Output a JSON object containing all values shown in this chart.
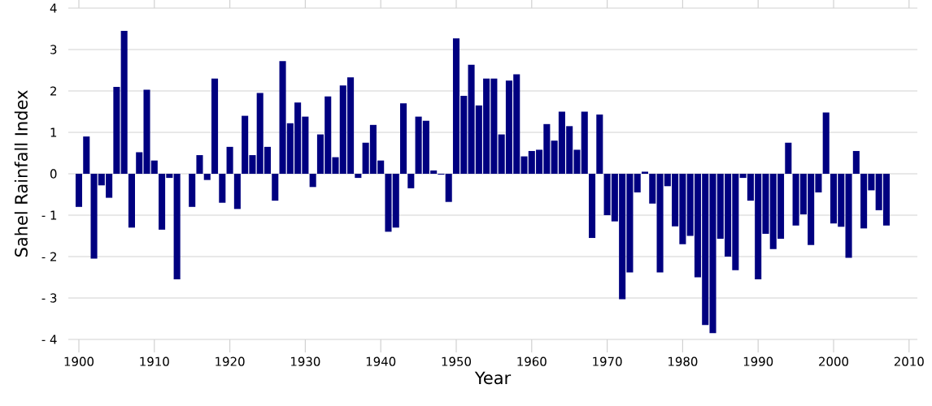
{
  "chart_data": {
    "type": "bar",
    "xlabel": "Year",
    "ylabel": "Sahel Rainfall Index",
    "color": "#000080",
    "grid": "y",
    "xlim": [
      1898.6,
      2011.1
    ],
    "ylim": [
      -4,
      4
    ],
    "xticks": [
      1900,
      1910,
      1920,
      1930,
      1940,
      1950,
      1960,
      1970,
      1980,
      1990,
      2000,
      2010
    ],
    "yticks": [
      {
        "value": -4,
        "label": "- 4"
      },
      {
        "value": -3,
        "label": "- 3"
      },
      {
        "value": -2,
        "label": "- 2"
      },
      {
        "value": -1,
        "label": "- 1"
      },
      0,
      1,
      2,
      3,
      4
    ],
    "x": [
      1900,
      1901,
      1902,
      1903,
      1904,
      1905,
      1906,
      1907,
      1908,
      1909,
      1910,
      1911,
      1912,
      1913,
      1914,
      1915,
      1916,
      1917,
      1918,
      1919,
      1920,
      1921,
      1922,
      1923,
      1924,
      1925,
      1926,
      1927,
      1928,
      1929,
      1930,
      1931,
      1932,
      1933,
      1934,
      1935,
      1936,
      1937,
      1938,
      1939,
      1940,
      1941,
      1942,
      1943,
      1944,
      1945,
      1946,
      1947,
      1948,
      1949,
      1950,
      1951,
      1952,
      1953,
      1954,
      1955,
      1956,
      1957,
      1958,
      1959,
      1960,
      1961,
      1962,
      1963,
      1964,
      1965,
      1966,
      1967,
      1968,
      1969,
      1970,
      1971,
      1972,
      1973,
      1974,
      1975,
      1976,
      1977,
      1978,
      1979,
      1980,
      1981,
      1982,
      1983,
      1984,
      1985,
      1986,
      1987,
      1988,
      1989,
      1990,
      1991,
      1992,
      1993,
      1994,
      1995,
      1996,
      1997,
      1998,
      1999,
      2000,
      2001,
      2002,
      2003,
      2004,
      2005,
      2006,
      2007
    ],
    "values": [
      -0.8,
      0.9,
      -2.05,
      -0.28,
      -0.58,
      2.1,
      3.45,
      -1.3,
      0.52,
      2.03,
      0.32,
      -1.35,
      -0.1,
      -2.55,
      0,
      -0.8,
      0.45,
      -0.15,
      2.3,
      -0.7,
      0.65,
      -0.85,
      1.4,
      0.45,
      1.95,
      0.65,
      -0.65,
      2.72,
      1.22,
      1.72,
      1.38,
      -0.32,
      0.95,
      1.87,
      0.4,
      2.13,
      2.33,
      -0.1,
      0.75,
      1.18,
      0.32,
      -1.4,
      -1.3,
      1.7,
      -0.35,
      1.38,
      1.28,
      0.08,
      -0.02,
      -0.68,
      3.27,
      1.88,
      2.63,
      1.65,
      2.3,
      2.3,
      0.95,
      2.25,
      2.4,
      0.42,
      0.55,
      0.58,
      1.2,
      0.8,
      1.5,
      1.15,
      0.58,
      1.5,
      -1.55,
      1.43,
      -1.0,
      -1.15,
      -3.03,
      -2.38,
      -0.45,
      0.05,
      -0.72,
      -2.38,
      -0.3,
      -1.27,
      -1.7,
      -1.5,
      -2.5,
      -3.65,
      -3.85,
      -1.57,
      -2.0,
      -2.33,
      -0.1,
      -0.65,
      -2.55,
      -1.45,
      -1.82,
      -1.57,
      0.75,
      -1.25,
      -0.98,
      -1.72,
      -0.45,
      1.48,
      -1.2,
      -1.28,
      -2.03,
      0.55,
      -1.32,
      -0.4,
      -0.88,
      -1.25
    ]
  }
}
